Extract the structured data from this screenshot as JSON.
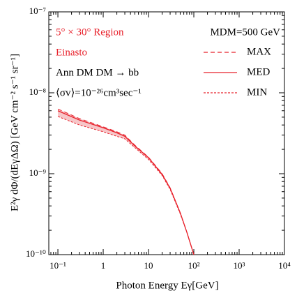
{
  "chart_data": {
    "type": "line",
    "xlabel": "Photon Energy  Eγ[GeV]",
    "ylabel": "E²γ dΦ/(dEγΔΩ) [GeV cm⁻² s⁻¹ sr⁻¹]",
    "annotations": [
      {
        "text": "5° × 30° Region",
        "color": "#e8202a"
      },
      {
        "text": "Einasto",
        "color": "#e8202a"
      },
      {
        "text": "Ann  DM DM → bb",
        "color": "#000000"
      },
      {
        "text": "⟨σv⟩=10⁻²⁶cm³sec⁻¹",
        "color": "#000000"
      }
    ],
    "legend_title": "MDM=500 GeV",
    "legend": "upper right",
    "log_x": true,
    "log_y": true,
    "minor_ticks": true,
    "band_color": "#f6c6c8",
    "x": [
      0.1,
      0.3,
      1,
      2,
      3,
      5,
      10,
      20,
      30,
      50,
      70,
      100
    ],
    "series": [
      {
        "name": "MAX",
        "color": "#e8202a",
        "style": "dashed",
        "values": [
          6.3e-09,
          4.8e-09,
          3.8e-09,
          3.3e-09,
          3e-09,
          2.25e-09,
          1.6e-09,
          1e-09,
          6.7e-10,
          3.3e-10,
          1.9e-10,
          1e-10
        ]
      },
      {
        "name": "MED",
        "color": "#e8202a",
        "style": "solid",
        "values": [
          6e-09,
          4.6e-09,
          3.7e-09,
          3.2e-09,
          2.9e-09,
          2.2e-09,
          1.58e-09,
          9.8e-10,
          6.6e-10,
          3.3e-10,
          1.9e-10,
          1e-10
        ]
      },
      {
        "name": "MIN",
        "color": "#e8202a",
        "style": "fine-dashed",
        "values": [
          5.1e-09,
          4e-09,
          3.3e-09,
          2.9e-09,
          2.7e-09,
          2.1e-09,
          1.5e-09,
          9.5e-10,
          6.4e-10,
          3.2e-10,
          1.9e-10,
          1e-10
        ]
      }
    ],
    "xlim": [
      0.063,
      10000
    ],
    "ylim": [
      1e-10,
      1e-07
    ],
    "xticks": [
      {
        "value": 0.1,
        "label": "10⁻¹"
      },
      1,
      10,
      {
        "value": 100,
        "label": "10²"
      },
      {
        "value": 1000,
        "label": "10³"
      },
      {
        "value": 10000,
        "label": "10⁴"
      }
    ],
    "yticks": [
      {
        "value": 1e-10,
        "label": "10⁻¹⁰"
      },
      {
        "value": 1e-09,
        "label": "10⁻⁹"
      },
      {
        "value": 1e-08,
        "label": "10⁻⁸"
      },
      {
        "value": 1e-07,
        "label": "10⁻⁷"
      }
    ]
  }
}
